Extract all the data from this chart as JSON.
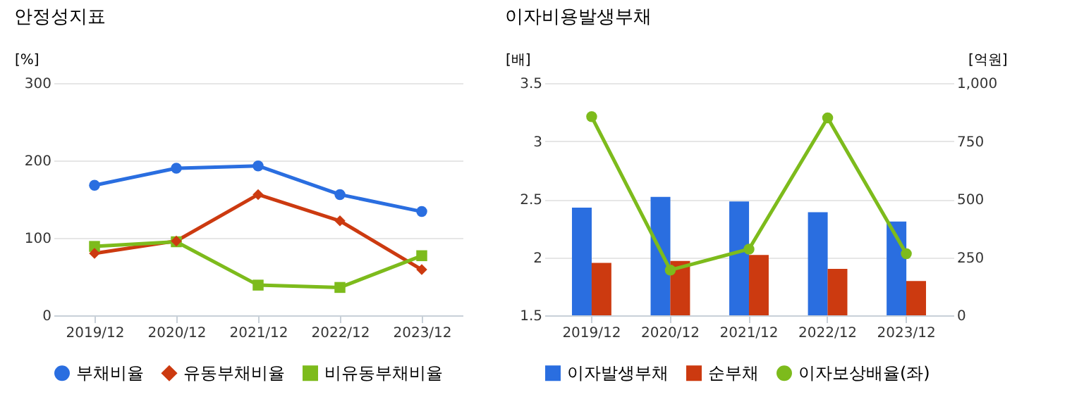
{
  "chart_data": [
    {
      "type": "line",
      "title": "안정성지표",
      "ylabel": "[%]",
      "categories": [
        "2019/12",
        "2020/12",
        "2021/12",
        "2022/12",
        "2023/12"
      ],
      "ylim": [
        0,
        300
      ],
      "yticks": [
        0,
        100,
        200,
        300
      ],
      "grid": "y",
      "legend": "bottom",
      "series": [
        {
          "name": "부채비율",
          "color": "#2a6ee0",
          "marker": "circle",
          "values": [
            168,
            190,
            193,
            156,
            134
          ]
        },
        {
          "name": "유동부채비율",
          "color": "#cc3a10",
          "marker": "diamond",
          "values": [
            80,
            96,
            156,
            122,
            59
          ]
        },
        {
          "name": "비유동부채비율",
          "color": "#7dbb1c",
          "marker": "square",
          "values": [
            89,
            95,
            39,
            36,
            77
          ]
        }
      ]
    },
    {
      "type": "bar",
      "title": "이자비용발생부채",
      "ylabel": "[배]",
      "y2label": "[억원]",
      "categories": [
        "2019/12",
        "2020/12",
        "2021/12",
        "2022/12",
        "2023/12"
      ],
      "ylim": [
        1.5,
        3.5
      ],
      "yticks": [
        1.5,
        2,
        2.5,
        3,
        3.5
      ],
      "y2lim": [
        0,
        1000
      ],
      "y2ticks": [
        0,
        250,
        500,
        750,
        {
          "value": 1000,
          "label": "1,000"
        }
      ],
      "grid": "y",
      "legend": "bottom",
      "series": [
        {
          "name": "이자발생부채",
          "color": "#2a6ee0",
          "axis": "y2",
          "marker": "square",
          "values": [
            464,
            510,
            490,
            444,
            404
          ]
        },
        {
          "name": "순부채",
          "color": "#cc3a10",
          "axis": "y2",
          "marker": "square",
          "values": [
            226,
            234,
            260,
            200,
            148
          ]
        },
        {
          "name": "이자보상배율(좌)",
          "color": "#7dbb1c",
          "type": "line",
          "axis": "y",
          "marker": "circle",
          "values": [
            3.21,
            1.89,
            2.07,
            3.2,
            2.03
          ]
        }
      ]
    }
  ]
}
